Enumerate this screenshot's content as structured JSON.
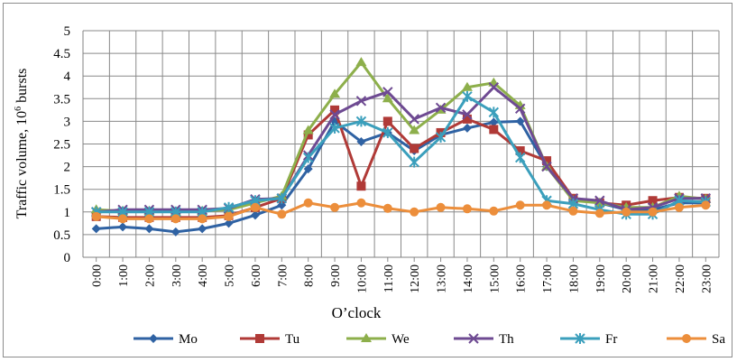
{
  "chart_data": {
    "type": "line",
    "title": "",
    "xlabel": "O’clock",
    "ylabel_prefix": "Traffic volume, 10",
    "ylabel_sup": "6",
    "ylabel_suffix": " bursts",
    "ylim": [
      0,
      5
    ],
    "yticks": [
      "0",
      "0.5",
      "1",
      "1.5",
      "2",
      "2.5",
      "3",
      "3.5",
      "4",
      "4.5",
      "5"
    ],
    "grid": true,
    "legend_position": "bottom",
    "categories": [
      "0:00",
      "1:00",
      "2:00",
      "3:00",
      "4:00",
      "5:00",
      "6:00",
      "7:00",
      "8:00",
      "9:00",
      "10:00",
      "11:00",
      "12:00",
      "13:00",
      "14:00",
      "15:00",
      "16:00",
      "17:00",
      "18:00",
      "19:00",
      "20:00",
      "21:00",
      "22:00",
      "23:00"
    ],
    "series": [
      {
        "name": "Mo",
        "color": "#2f62a3",
        "marker": "diamond",
        "values": [
          0.63,
          0.67,
          0.63,
          0.56,
          0.63,
          0.75,
          0.93,
          1.15,
          1.95,
          3.0,
          2.55,
          2.75,
          2.35,
          2.7,
          2.85,
          2.98,
          3.0,
          2.0,
          1.3,
          1.2,
          1.05,
          1.05,
          1.2,
          1.2
        ]
      },
      {
        "name": "Tu",
        "color": "#b03a37",
        "marker": "square",
        "values": [
          0.9,
          0.88,
          0.88,
          0.88,
          0.88,
          0.92,
          1.1,
          1.3,
          2.7,
          3.25,
          1.57,
          3.0,
          2.4,
          2.75,
          3.05,
          2.82,
          2.35,
          2.13,
          1.3,
          1.2,
          1.15,
          1.25,
          1.32,
          1.3
        ]
      },
      {
        "name": "We",
        "color": "#8daf4b",
        "marker": "triangle",
        "values": [
          1.05,
          1.02,
          1.02,
          1.0,
          1.02,
          1.05,
          1.2,
          1.35,
          2.8,
          3.6,
          4.3,
          3.5,
          2.8,
          3.25,
          3.75,
          3.85,
          3.35,
          2.0,
          1.25,
          1.2,
          1.1,
          1.1,
          1.35,
          1.28
        ]
      },
      {
        "name": "Th",
        "color": "#6e4a92",
        "marker": "x",
        "values": [
          1.0,
          1.05,
          1.05,
          1.05,
          1.05,
          1.08,
          1.28,
          1.3,
          2.25,
          3.15,
          3.45,
          3.65,
          3.05,
          3.3,
          3.15,
          3.75,
          3.28,
          2.0,
          1.3,
          1.25,
          1.05,
          1.1,
          1.3,
          1.3
        ]
      },
      {
        "name": "Fr",
        "color": "#3b9fbc",
        "marker": "star",
        "values": [
          1.0,
          1.0,
          1.0,
          1.0,
          1.0,
          1.1,
          1.25,
          1.3,
          2.2,
          2.85,
          3.0,
          2.75,
          2.1,
          2.65,
          3.55,
          3.2,
          2.2,
          1.25,
          1.18,
          1.05,
          0.95,
          0.95,
          1.25,
          1.22
        ]
      },
      {
        "name": "Sa",
        "color": "#ec8e3b",
        "marker": "circle",
        "values": [
          0.9,
          0.85,
          0.85,
          0.85,
          0.85,
          0.9,
          1.1,
          0.95,
          1.2,
          1.1,
          1.2,
          1.08,
          1.0,
          1.1,
          1.07,
          1.02,
          1.15,
          1.15,
          1.02,
          0.97,
          1.0,
          1.0,
          1.1,
          1.15
        ]
      }
    ]
  }
}
